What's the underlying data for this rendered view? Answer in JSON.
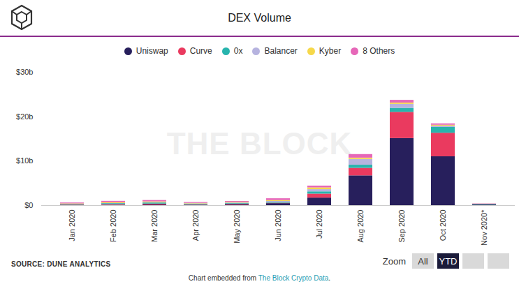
{
  "page": {
    "source": "SOURCE: DUNE ANALYTICS",
    "zoom_label": "Zoom",
    "zoom_buttons": [
      "All",
      "YTD"
    ],
    "embed_prefix": "Chart embedded from ",
    "embed_link": "The Block Crypto Data",
    "embed_suffix": ".",
    "watermark": "THE BLOCK"
  },
  "chart_data": {
    "type": "bar",
    "title": "DEX Volume",
    "stacked": true,
    "grid": false,
    "categories": [
      "Jan 2020",
      "Feb 2020",
      "Mar 2020",
      "Apr 2020",
      "May 2020",
      "Jun 2020",
      "Jul 2020",
      "Aug 2020",
      "Sep 2020",
      "Oct 2020",
      "Nov 2020*"
    ],
    "series": [
      {
        "name": "Uniswap",
        "color": "#271f5c",
        "values": [
          0.05,
          0.1,
          0.15,
          0.1,
          0.2,
          0.45,
          1.7,
          6.7,
          15.1,
          11.0,
          0.15
        ]
      },
      {
        "name": "Curve",
        "color": "#ea3a5f",
        "values": [
          0.1,
          0.15,
          0.2,
          0.1,
          0.15,
          0.1,
          0.9,
          1.7,
          5.9,
          5.3,
          0.05
        ]
      },
      {
        "name": "0x",
        "color": "#27b4ad",
        "values": [
          0.15,
          0.2,
          0.25,
          0.15,
          0.15,
          0.2,
          0.5,
          0.7,
          0.9,
          1.3,
          0.1
        ]
      },
      {
        "name": "Balancer",
        "color": "#b6b3df",
        "values": [
          0,
          0.02,
          0.05,
          0.05,
          0.1,
          0.2,
          0.5,
          1.3,
          0.9,
          0.3,
          0.02
        ]
      },
      {
        "name": "Kyber",
        "color": "#f6d84a",
        "values": [
          0.1,
          0.2,
          0.2,
          0.1,
          0.15,
          0.2,
          0.4,
          0.3,
          0.3,
          0.2,
          0.02
        ]
      },
      {
        "name": "8 Others",
        "color": "#e667b8",
        "values": [
          0.2,
          0.3,
          0.3,
          0.2,
          0.2,
          0.4,
          0.4,
          0.8,
          0.6,
          0.3,
          0.06
        ]
      }
    ],
    "ylim": [
      0,
      30
    ],
    "yticks": [
      {
        "value": 0,
        "label": "$0"
      },
      {
        "value": 10,
        "label": "$10b"
      },
      {
        "value": 20,
        "label": "$20b"
      },
      {
        "value": 30,
        "label": "$30b"
      }
    ],
    "legend": "top"
  }
}
